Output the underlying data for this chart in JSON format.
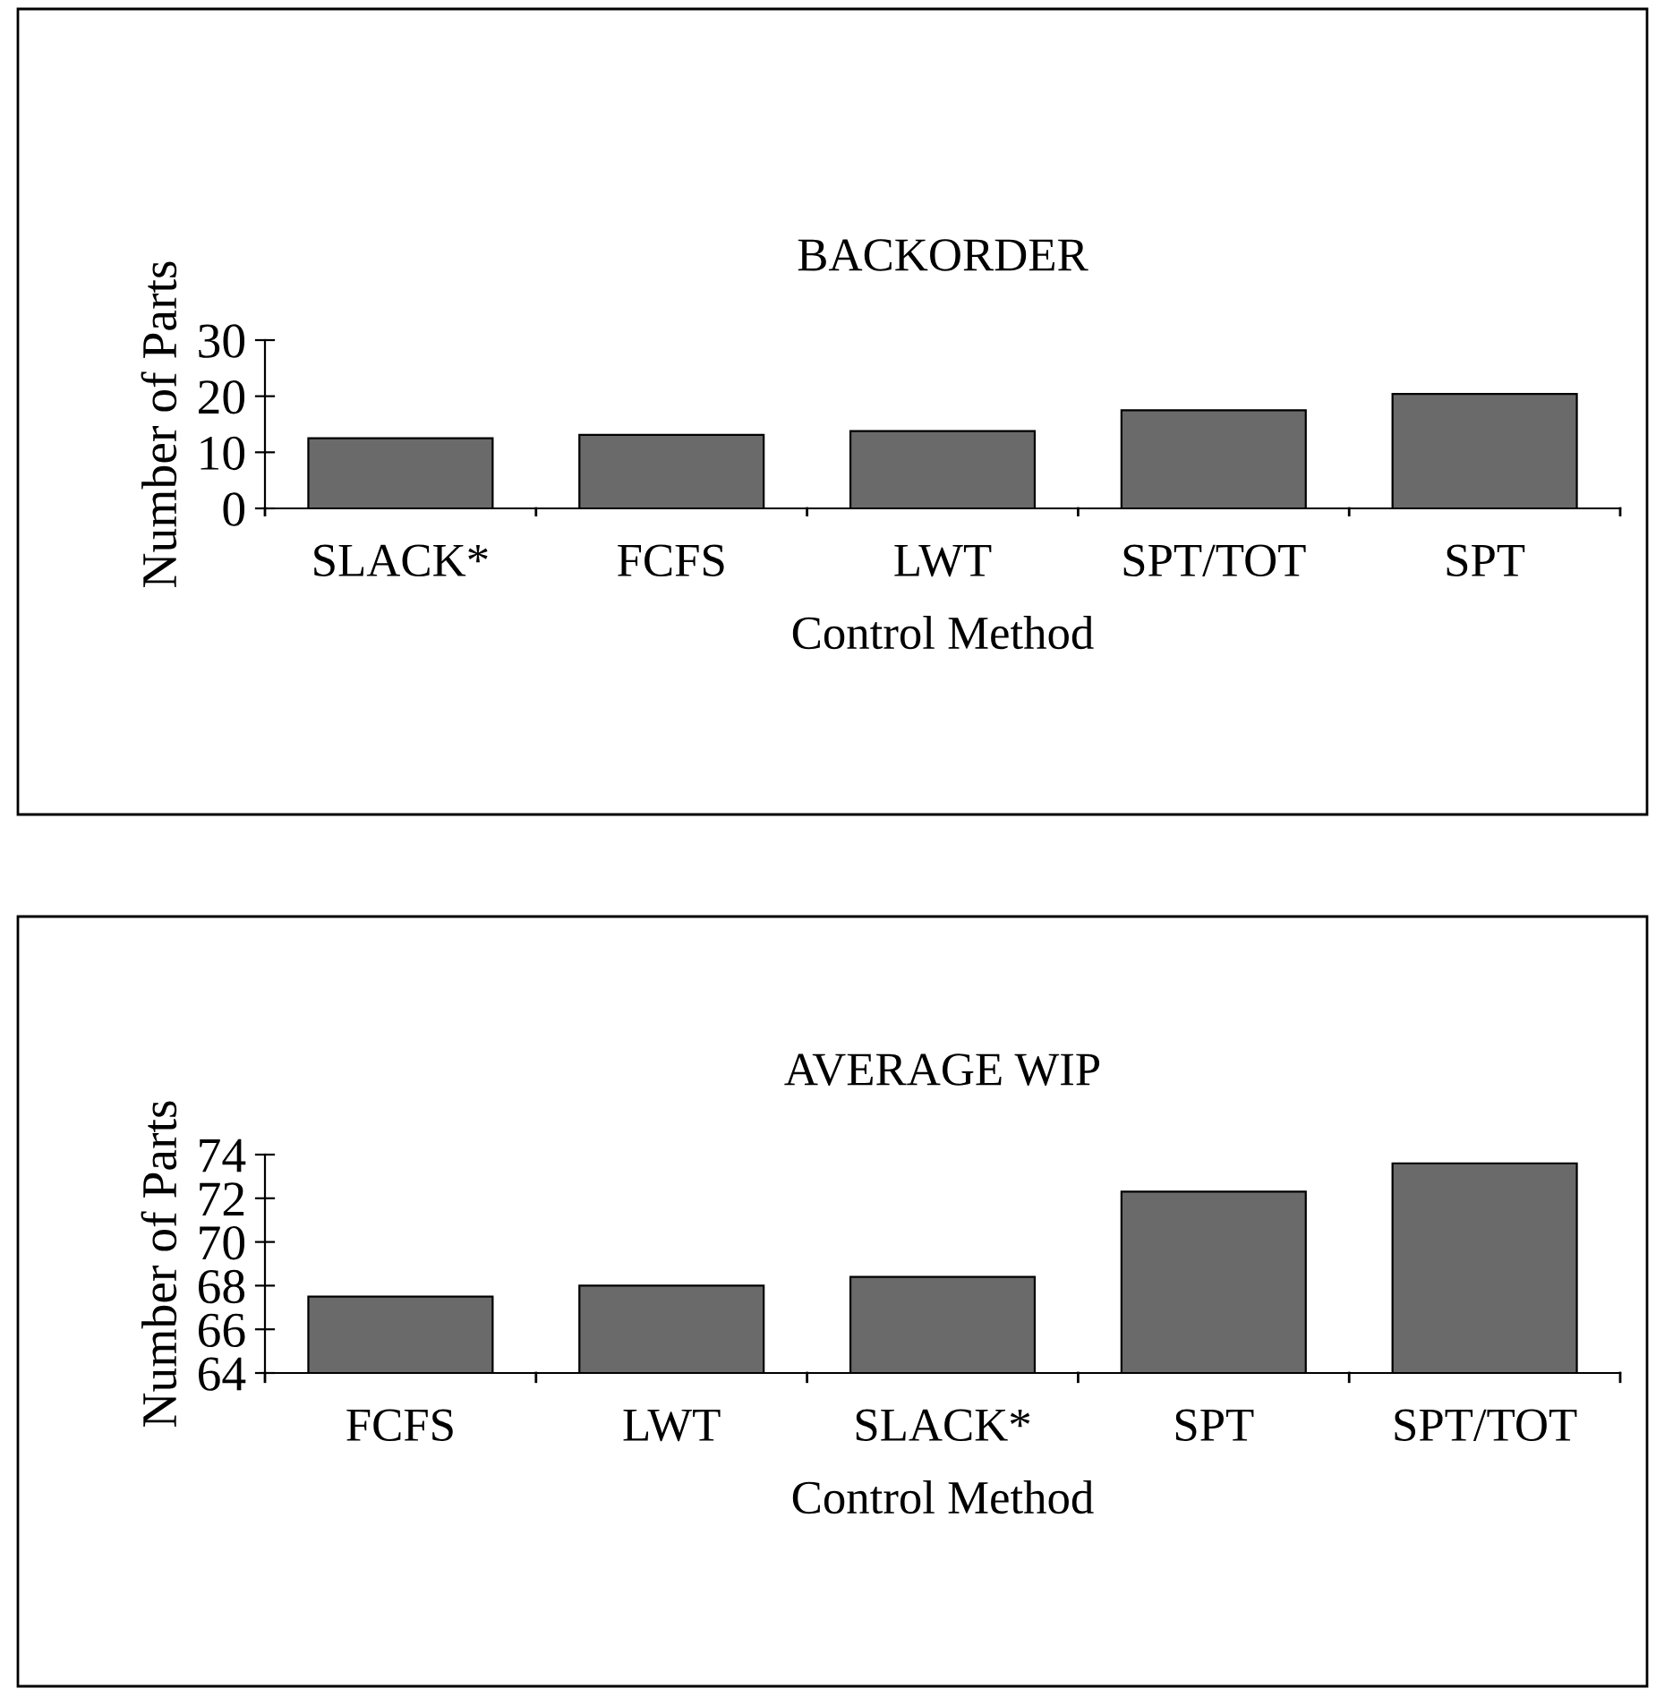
{
  "chart_data": [
    {
      "type": "bar",
      "title": "BACKORDER",
      "xlabel": "Control Method",
      "ylabel": "Number of Parts",
      "categories": [
        "SLACK*",
        "FCFS",
        "LWT",
        "SPT/TOT",
        "SPT"
      ],
      "values": [
        12.5,
        13.1,
        13.8,
        17.5,
        20.4
      ],
      "color": "#6a6a6a",
      "ylim": [
        0,
        30
      ],
      "yticks": [
        0,
        10,
        20,
        30
      ],
      "grid": false,
      "legend": false
    },
    {
      "type": "bar",
      "title": "AVERAGE WIP",
      "xlabel": "Control Method",
      "ylabel": "Number of Parts",
      "categories": [
        "FCFS",
        "LWT",
        "SLACK*",
        "SPT",
        "SPT/TOT"
      ],
      "values": [
        67.5,
        68.0,
        68.4,
        72.3,
        73.6
      ],
      "color": "#6a6a6a",
      "ylim": [
        64,
        74
      ],
      "yticks": [
        64,
        66,
        68,
        70,
        72,
        74
      ],
      "grid": false,
      "legend": false
    }
  ]
}
